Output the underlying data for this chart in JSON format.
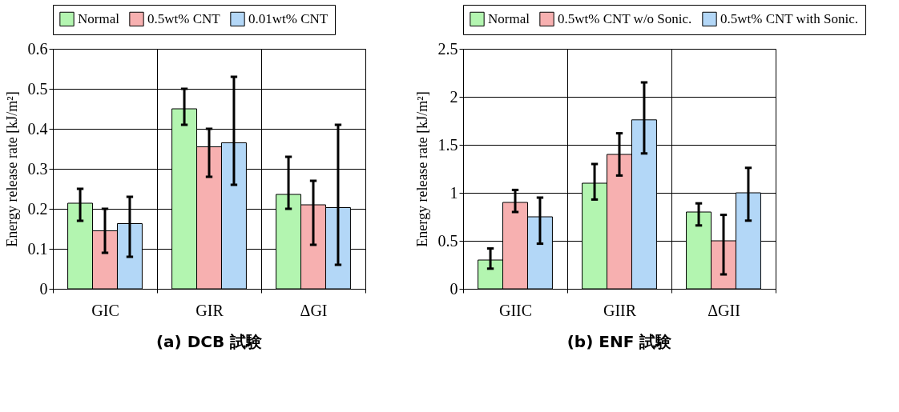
{
  "chart_data": [
    {
      "type": "bar",
      "title": "(a) DCB 試験",
      "ylabel": "Energy release rate  [kJ/m²]",
      "categories": [
        "GIC",
        "GIR",
        "ΔGI"
      ],
      "ylim": [
        0,
        0.6
      ],
      "yticks": [
        0,
        0.1,
        0.2,
        0.3,
        0.4,
        0.5,
        0.6
      ],
      "grid": true,
      "legend": "top",
      "series": [
        {
          "name": "Normal",
          "color": "#b3f5b0",
          "values": [
            0.214,
            0.45,
            0.236
          ],
          "errors": [
            [
              0.17,
              0.25
            ],
            [
              0.41,
              0.5
            ],
            [
              0.2,
              0.33
            ]
          ]
        },
        {
          "name": "0.5wt% CNT",
          "color": "#f7b0b0",
          "values": [
            0.145,
            0.355,
            0.21
          ],
          "errors": [
            [
              0.09,
              0.2
            ],
            [
              0.28,
              0.4
            ],
            [
              0.11,
              0.27
            ]
          ]
        },
        {
          "name": "0.01wt% CNT",
          "color": "#b3d7f7",
          "values": [
            0.163,
            0.365,
            0.203
          ],
          "errors": [
            [
              0.08,
              0.23
            ],
            [
              0.26,
              0.53
            ],
            [
              0.06,
              0.41
            ]
          ]
        }
      ]
    },
    {
      "type": "bar",
      "title": "(b) ENF 試験",
      "ylabel": "Energy release rate  [kJ/m²]",
      "categories": [
        "GIIC",
        "GIIR",
        "ΔGII"
      ],
      "ylim": [
        0,
        2.5
      ],
      "yticks": [
        0,
        0.5,
        1,
        1.5,
        2,
        2.5
      ],
      "grid": true,
      "legend": "top",
      "series": [
        {
          "name": "Normal",
          "color": "#b3f5b0",
          "values": [
            0.3,
            1.1,
            0.8
          ],
          "errors": [
            [
              0.21,
              0.42
            ],
            [
              0.93,
              1.3
            ],
            [
              0.66,
              0.89
            ]
          ]
        },
        {
          "name": "0.5wt% CNT w/o Sonic.",
          "color": "#f7b0b0",
          "values": [
            0.9,
            1.4,
            0.5
          ],
          "errors": [
            [
              0.8,
              1.03
            ],
            [
              1.18,
              1.62
            ],
            [
              0.15,
              0.77
            ]
          ]
        },
        {
          "name": "0.5wt% CNT with Sonic.",
          "color": "#b3d7f7",
          "values": [
            0.75,
            1.76,
            1.0
          ],
          "errors": [
            [
              0.47,
              0.95
            ],
            [
              1.41,
              2.15
            ],
            [
              0.71,
              1.26
            ]
          ]
        }
      ]
    }
  ]
}
